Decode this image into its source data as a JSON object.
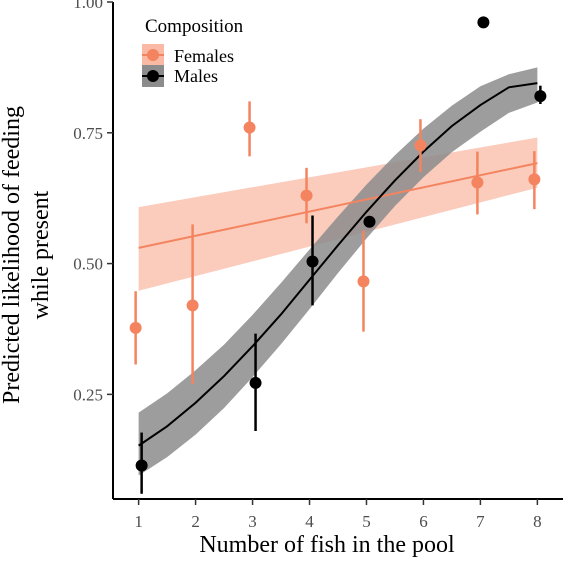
{
  "chart_data": {
    "type": "scatter",
    "xlabel": "Number of fish in the pool",
    "ylabel_lines": [
      "Predicted likelihood of feeding",
      "while present"
    ],
    "xlim": [
      0.55,
      8.45
    ],
    "ylim": [
      0.05,
      1.0
    ],
    "x_ticks": [
      1,
      2,
      3,
      4,
      5,
      6,
      7,
      8
    ],
    "y_ticks": [
      0.25,
      0.5,
      0.75,
      1.0
    ],
    "y_tick_labels": [
      "0.25",
      "0.50",
      "0.75",
      "1.00"
    ],
    "grid": false,
    "legend": {
      "title": "Composition",
      "placement": "top-left"
    },
    "series": [
      {
        "name": "Females",
        "color": "#f4845f",
        "band_color": "#f9b9a5",
        "x": [
          1,
          2,
          3,
          4,
          5,
          6,
          7,
          8
        ],
        "y": [
          0.377,
          0.42,
          0.76,
          0.63,
          0.466,
          0.726,
          0.655,
          0.661
        ],
        "y_low": [
          0.307,
          0.27,
          0.705,
          0.577,
          0.37,
          0.675,
          0.594,
          0.604
        ],
        "y_high": [
          0.447,
          0.575,
          0.81,
          0.683,
          0.563,
          0.776,
          0.714,
          0.715
        ],
        "fit_type": "linear",
        "fit": [
          0.53,
          0.692
        ],
        "band_low": [
          0.448,
          0.645
        ],
        "band_high": [
          0.608,
          0.741
        ]
      },
      {
        "name": "Males",
        "color": "#000000",
        "band_color": "#8c8c8c",
        "x": [
          1,
          3,
          4,
          5,
          7,
          8
        ],
        "y": [
          0.114,
          0.272,
          0.504,
          0.58,
          0.961,
          0.82
        ],
        "y_low": [
          0.06,
          0.18,
          0.42,
          null,
          null,
          0.805
        ],
        "y_high": [
          0.177,
          0.366,
          0.592,
          null,
          null,
          0.84
        ],
        "fit_type": "logistic",
        "fit_x": [
          1,
          1.5,
          2,
          2.5,
          3,
          3.5,
          4,
          4.5,
          5,
          5.5,
          6,
          6.5,
          7,
          7.5,
          8
        ],
        "fit": [
          0.152,
          0.189,
          0.234,
          0.285,
          0.342,
          0.403,
          0.469,
          0.535,
          0.599,
          0.659,
          0.714,
          0.763,
          0.803,
          0.837,
          0.845
        ],
        "band_low": [
          0.095,
          0.13,
          0.173,
          0.224,
          0.283,
          0.346,
          0.413,
          0.482,
          0.548,
          0.61,
          0.665,
          0.713,
          0.752,
          0.788,
          0.808
        ],
        "band_high": [
          0.215,
          0.252,
          0.296,
          0.345,
          0.402,
          0.463,
          0.527,
          0.59,
          0.651,
          0.707,
          0.758,
          0.802,
          0.839,
          0.862,
          0.875
        ]
      }
    ]
  }
}
